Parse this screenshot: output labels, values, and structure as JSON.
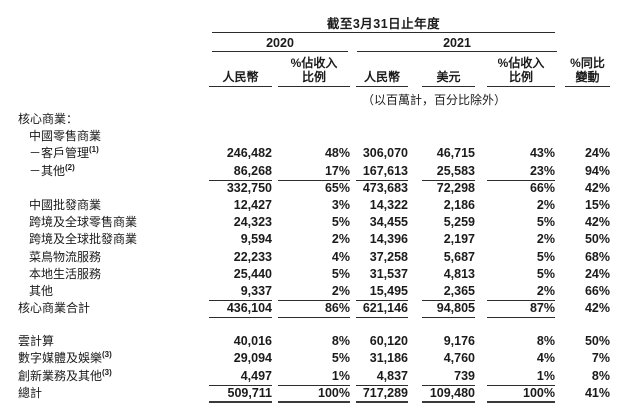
{
  "header": {
    "title": "截至3月31日止年度",
    "year_2020": "2020",
    "year_2021": "2021",
    "note": "（以百萬計，百分比除外）",
    "columns": [
      {
        "line1": "",
        "line2": "人民幣"
      },
      {
        "line1": "%佔收入",
        "line2": "比例"
      },
      {
        "line1": "",
        "line2": "人民幣"
      },
      {
        "line1": "",
        "line2": "美元"
      },
      {
        "line1": "%佔收入",
        "line2": "比例"
      },
      {
        "line1": "%同比",
        "line2": "變動"
      }
    ]
  },
  "table": {
    "rows": [
      {
        "label": "核心商業：",
        "sup": "",
        "indent": 0,
        "cells": [
          "",
          "",
          "",
          "",
          "",
          ""
        ],
        "rule": "none",
        "spacer_before": false
      },
      {
        "label": "中國零售商業",
        "sup": "",
        "indent": 1,
        "cells": [
          "",
          "",
          "",
          "",
          "",
          ""
        ],
        "rule": "none",
        "spacer_before": false
      },
      {
        "label": "－客戶管理",
        "sup": "(1)",
        "indent": 1,
        "cells": [
          "246,482",
          "48%",
          "306,070",
          "46,715",
          "43%",
          "24%"
        ],
        "rule": "none",
        "spacer_before": false
      },
      {
        "label": "－其他",
        "sup": "(2)",
        "indent": 1,
        "cells": [
          "86,268",
          "17%",
          "167,613",
          "25,583",
          "23%",
          "94%"
        ],
        "rule": "single",
        "spacer_before": false
      },
      {
        "label": "",
        "sup": "",
        "indent": 1,
        "cells": [
          "332,750",
          "65%",
          "473,683",
          "72,298",
          "66%",
          "42%"
        ],
        "rule": "none",
        "spacer_before": false
      },
      {
        "label": "中國批發商業",
        "sup": "",
        "indent": 1,
        "cells": [
          "12,427",
          "3%",
          "14,322",
          "2,186",
          "2%",
          "15%"
        ],
        "rule": "none",
        "spacer_before": false
      },
      {
        "label": "跨境及全球零售商業",
        "sup": "",
        "indent": 1,
        "cells": [
          "24,323",
          "5%",
          "34,455",
          "5,259",
          "5%",
          "42%"
        ],
        "rule": "none",
        "spacer_before": false
      },
      {
        "label": "跨境及全球批發商業",
        "sup": "",
        "indent": 1,
        "cells": [
          "9,594",
          "2%",
          "14,396",
          "2,197",
          "2%",
          "50%"
        ],
        "rule": "none",
        "spacer_before": false
      },
      {
        "label": "菜鳥物流服務",
        "sup": "",
        "indent": 1,
        "cells": [
          "22,233",
          "4%",
          "37,258",
          "5,687",
          "5%",
          "68%"
        ],
        "rule": "none",
        "spacer_before": false
      },
      {
        "label": "本地生活服務",
        "sup": "",
        "indent": 1,
        "cells": [
          "25,440",
          "5%",
          "31,537",
          "4,813",
          "5%",
          "24%"
        ],
        "rule": "none",
        "spacer_before": false
      },
      {
        "label": "其他",
        "sup": "",
        "indent": 1,
        "cells": [
          "9,337",
          "2%",
          "15,495",
          "2,365",
          "2%",
          "66%"
        ],
        "rule": "single",
        "spacer_before": false
      },
      {
        "label": "核心商業合計",
        "sup": "",
        "indent": 0,
        "cells": [
          "436,104",
          "86%",
          "621,146",
          "94,805",
          "87%",
          "42%"
        ],
        "rule": "single",
        "spacer_before": false
      },
      {
        "label": "雲計算",
        "sup": "",
        "indent": 0,
        "cells": [
          "40,016",
          "8%",
          "60,120",
          "9,176",
          "8%",
          "50%"
        ],
        "rule": "none",
        "spacer_before": true
      },
      {
        "label": "數字媒體及娛樂",
        "sup": "(3)",
        "indent": 0,
        "cells": [
          "29,094",
          "5%",
          "31,186",
          "4,760",
          "4%",
          "7%"
        ],
        "rule": "none",
        "spacer_before": false
      },
      {
        "label": "創新業務及其他",
        "sup": "(3)",
        "indent": 0,
        "cells": [
          "4,497",
          "1%",
          "4,837",
          "739",
          "1%",
          "8%"
        ],
        "rule": "single",
        "spacer_before": false
      },
      {
        "label": "總計",
        "sup": "",
        "indent": 0,
        "cells": [
          "509,711",
          "100%",
          "717,289",
          "109,480",
          "100%",
          "41%"
        ],
        "rule": "total",
        "spacer_before": false
      }
    ]
  }
}
